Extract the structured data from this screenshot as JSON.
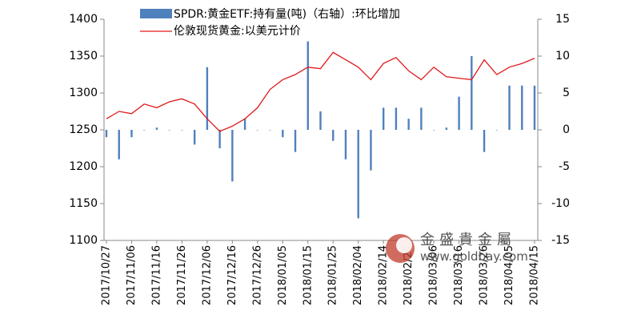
{
  "chart_data": {
    "type": "bar-line",
    "categories": [
      "2017/10/27",
      null,
      "2017/11/06",
      null,
      "2017/11/16",
      null,
      "2017/11/26",
      null,
      "2017/12/06",
      null,
      "2017/12/16",
      null,
      "2017/12/26",
      null,
      "2018/01/05",
      null,
      "2018/01/15",
      null,
      "2018/01/25",
      null,
      "2018/02/04",
      null,
      "2018/02/14",
      null,
      "2018/02/24",
      null,
      "2018/03/06",
      null,
      "2018/03/16",
      null,
      "2018/03/26",
      null,
      "2018/04/05",
      null,
      "2018/04/15"
    ],
    "series": [
      {
        "name": "SPDR:黄金ETF:持有量(吨)（右轴）:环比增加",
        "type": "bar",
        "axis": "y2",
        "color": "#4f81bd",
        "values": [
          -1,
          -4,
          -1,
          0,
          0.3,
          0,
          0,
          -2,
          8.5,
          -2.5,
          -7,
          1.5,
          0,
          0,
          -1,
          -3,
          12,
          2.5,
          -1.5,
          -4,
          -12,
          -5.5,
          3,
          3,
          1.5,
          3,
          0,
          0.3,
          4.5,
          10,
          -3,
          0,
          6,
          6,
          6
        ]
      },
      {
        "name": "伦敦现货黄金:以美元计价",
        "type": "line",
        "axis": "y",
        "color": "#e0191b",
        "values": [
          1265,
          1275,
          1272,
          1285,
          1280,
          1288,
          1292,
          1285,
          1265,
          1248,
          1255,
          1265,
          1280,
          1305,
          1318,
          1325,
          1335,
          1333,
          1355,
          1345,
          1335,
          1318,
          1340,
          1348,
          1330,
          1318,
          1335,
          1322,
          1320,
          1318,
          1345,
          1325,
          1335,
          1340,
          1347
        ]
      }
    ],
    "ylim": [
      1100,
      1400
    ],
    "yticks": [
      1100,
      1150,
      1200,
      1250,
      1300,
      1350,
      1400
    ],
    "y2lim": [
      -15,
      15
    ],
    "y2ticks": [
      -15,
      -10,
      -5,
      0,
      5,
      10,
      15
    ],
    "legend": "top-left",
    "watermark": {
      "name": "金盛貴金屬",
      "url": "www.goldbay.com"
    }
  }
}
